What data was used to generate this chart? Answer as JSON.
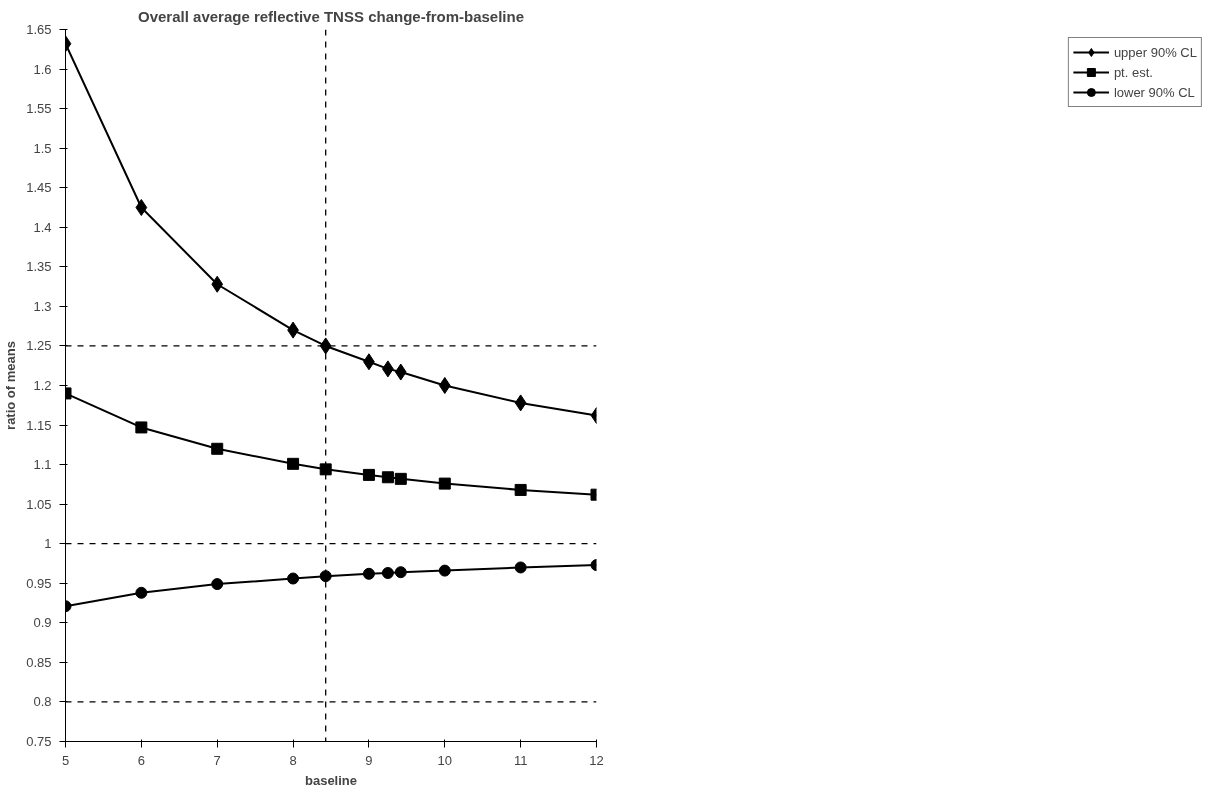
{
  "chart_data": {
    "type": "line",
    "title": "Overall average reflective TNSS change-from-baseline",
    "xlabel": "baseline",
    "ylabel": "ratio of means",
    "x": [
      5,
      6,
      7,
      8,
      8.43,
      9,
      9.25,
      9.42,
      10,
      11,
      12
    ],
    "series": [
      {
        "name": "upper 90% CL",
        "color": "#000000",
        "marker": "diamond",
        "values": [
          1.632,
          1.425,
          1.328,
          1.27,
          1.25,
          1.23,
          1.221,
          1.217,
          1.2,
          1.178,
          1.162
        ]
      },
      {
        "name": "pt. est.",
        "color": "#000000",
        "marker": "square",
        "values": [
          1.19,
          1.147,
          1.12,
          1.101,
          1.094,
          1.087,
          1.084,
          1.082,
          1.076,
          1.068,
          1.062
        ]
      },
      {
        "name": "lower 90% CL",
        "color": "#000000",
        "marker": "circle",
        "values": [
          0.921,
          0.938,
          0.949,
          0.956,
          0.959,
          0.962,
          0.963,
          0.964,
          0.966,
          0.97,
          0.973
        ]
      }
    ],
    "xlim": [
      5,
      12
    ],
    "xticks": [
      5,
      6,
      7,
      8,
      9,
      10,
      11,
      12
    ],
    "ylim": [
      0.75,
      1.65
    ],
    "yticks": [
      0.75,
      0.8,
      0.85,
      0.9,
      0.95,
      1,
      1.05,
      1.1,
      1.15,
      1.2,
      1.25,
      1.3,
      1.35,
      1.4,
      1.45,
      1.5,
      1.55,
      1.6,
      1.65
    ],
    "ref_lines": [
      {
        "axis": "y",
        "value": 1.25,
        "line_style": "dashed"
      },
      {
        "axis": "y",
        "value": 1.0,
        "line_style": "dashed"
      },
      {
        "axis": "y",
        "value": 0.8,
        "line_style": "dashed"
      },
      {
        "axis": "x",
        "value": 8.43,
        "line_style": "dashed"
      }
    ],
    "grid": false,
    "legend": "right",
    "line_style": "solid"
  }
}
